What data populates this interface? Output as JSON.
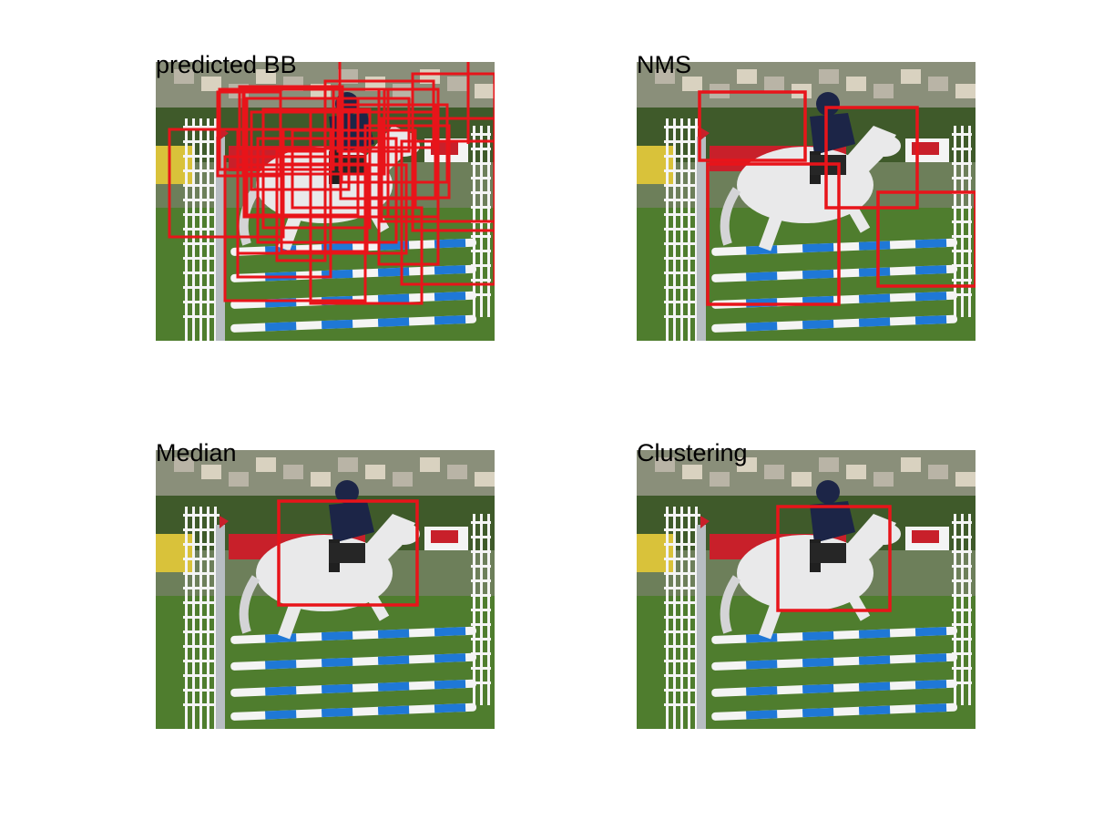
{
  "figure": {
    "panels": [
      {
        "id": "predicted",
        "title": "predicted BB"
      },
      {
        "id": "nms",
        "title": "NMS"
      },
      {
        "id": "median",
        "title": "Median"
      },
      {
        "id": "clustering",
        "title": "Clustering"
      }
    ]
  },
  "colors": {
    "box": "#e8141a",
    "grass": "#4f7d2e",
    "sky_trees": "#6d7f5a",
    "banner": "#c8202a",
    "pole_white": "#f4f4f4",
    "pole_blue": "#1f78d6",
    "horse": "#e9e9ea",
    "rider": "#1c2547"
  },
  "icons": [
    "show-jumping-photo"
  ]
}
